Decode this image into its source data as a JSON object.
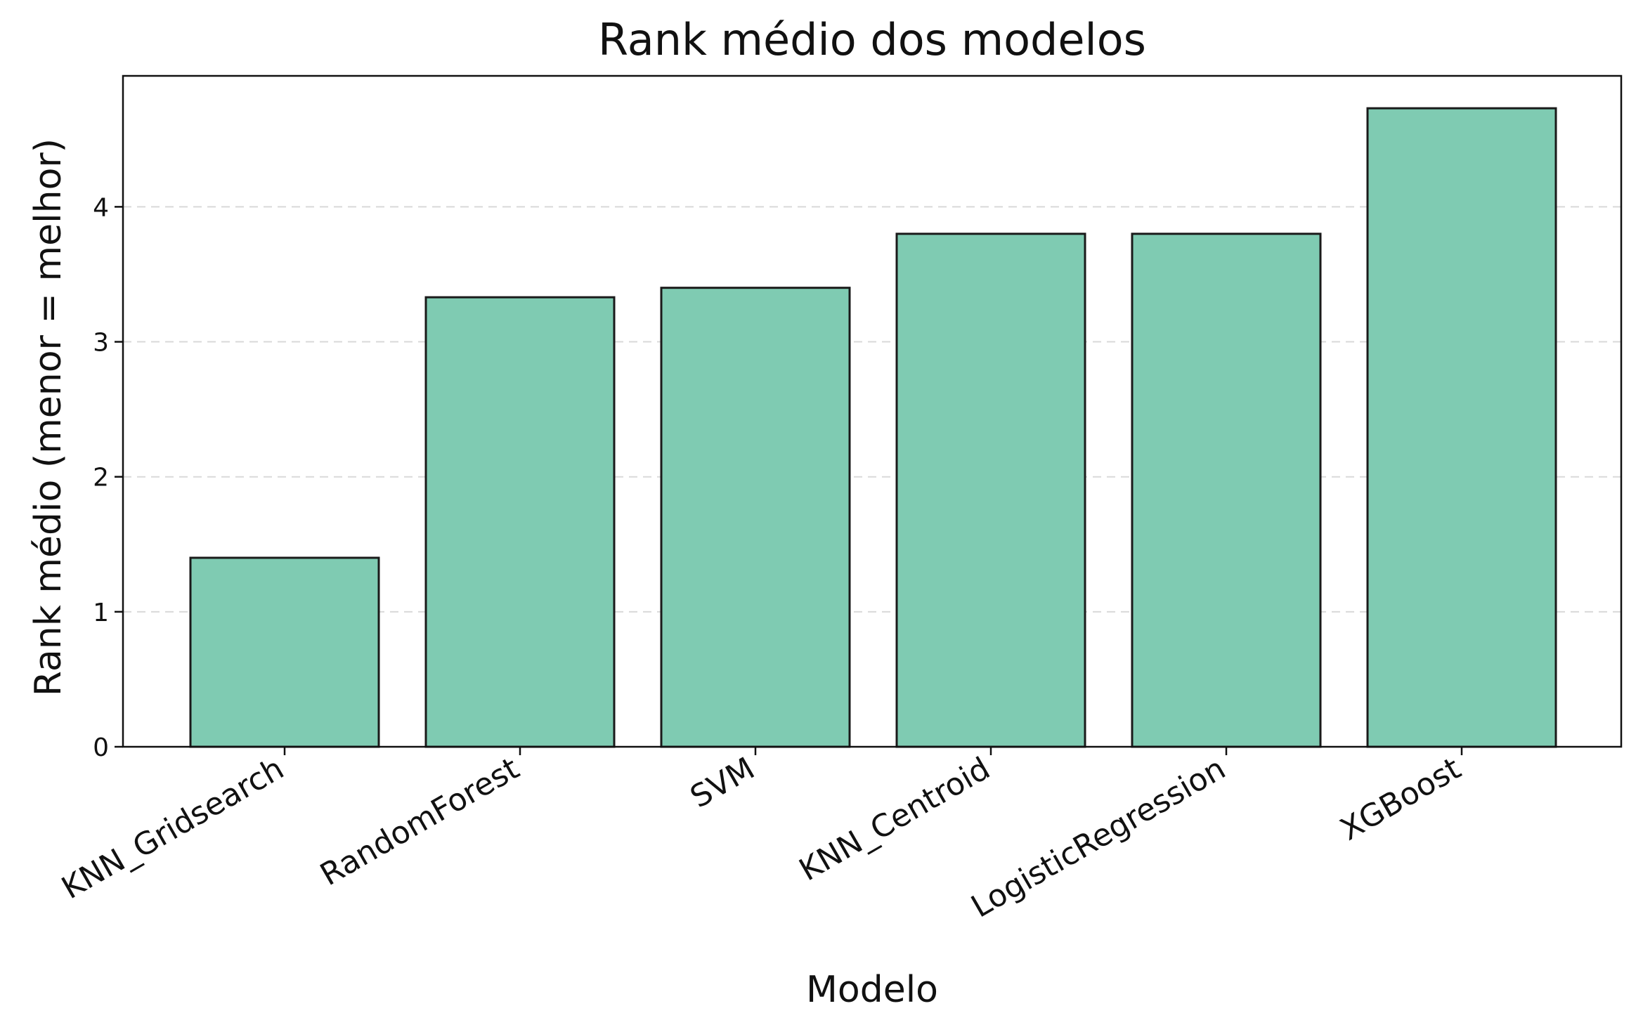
{
  "chart_data": {
    "type": "bar",
    "title": "Rank médio dos modelos",
    "xlabel": "Modelo",
    "ylabel": "Rank médio (menor = melhor)",
    "categories": [
      "KNN_Gridsearch",
      "RandomForest",
      "SVM",
      "KNN_Centroid",
      "LogisticRegression",
      "XGBoost"
    ],
    "values": [
      1.4,
      3.33,
      3.4,
      3.8,
      3.8,
      4.73
    ],
    "ylim": [
      0,
      4.97
    ],
    "yticks": [
      0,
      1,
      2,
      3,
      4
    ],
    "grid": "y-dashed",
    "colors": {
      "bar": "#7fcbb2",
      "edge": "#1a1a1a"
    }
  }
}
